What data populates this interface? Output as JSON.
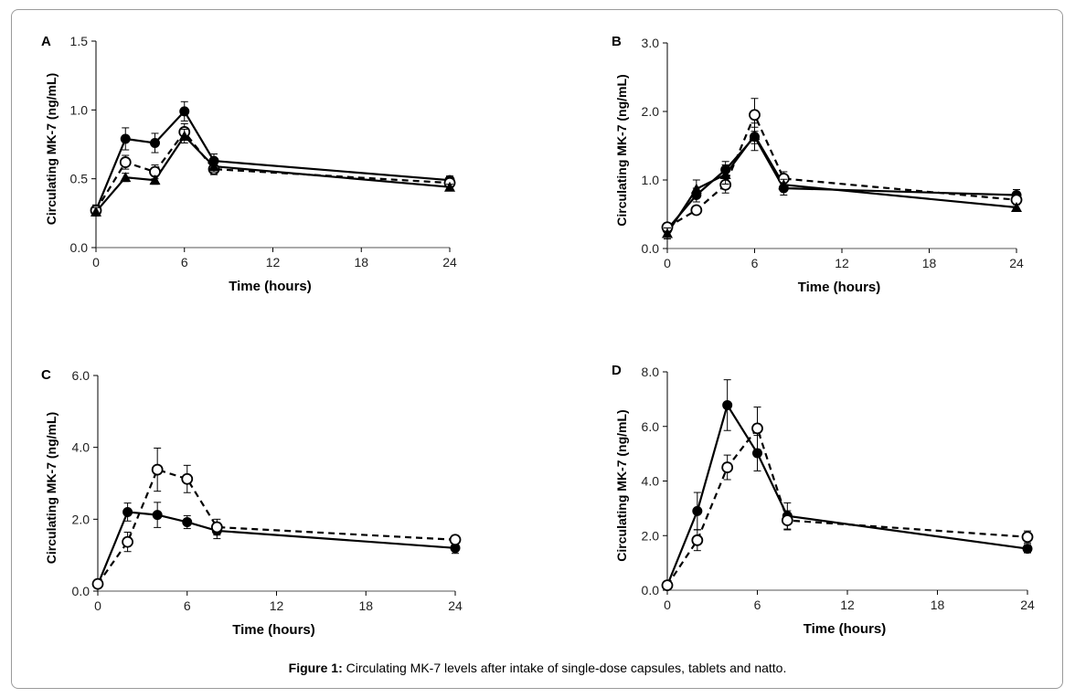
{
  "caption": {
    "label": "Figure 1:",
    "text": " Circulating MK-7 levels after intake of single-dose capsules, tablets and natto."
  },
  "chart_data": [
    {
      "type": "line",
      "panel": "A",
      "xlabel": "Time (hours)",
      "ylabel": "Circulating MK-7 (ng/mL)",
      "x": [
        0,
        2,
        4,
        6,
        8,
        24
      ],
      "xticks": [
        "0",
        "6",
        "12",
        "18",
        "24"
      ],
      "xtick_values": [
        0,
        6,
        12,
        18,
        24
      ],
      "xlim": [
        0,
        24
      ],
      "yticks": [
        "0.0",
        "0.5",
        "1.0",
        "1.5"
      ],
      "ytick_values": [
        0,
        0.5,
        1.0,
        1.5
      ],
      "ylim": [
        0,
        1.5
      ],
      "grid": false,
      "series": [
        {
          "name": "filled-circle",
          "marker": "filled-circle",
          "line": "solid",
          "values": [
            0.27,
            0.79,
            0.76,
            0.99,
            0.63,
            0.49
          ],
          "errors": [
            0.04,
            0.08,
            0.07,
            0.07,
            0.05,
            0.03
          ]
        },
        {
          "name": "open-circle",
          "marker": "open-circle",
          "line": "dashed",
          "values": [
            0.27,
            0.62,
            0.55,
            0.84,
            0.57,
            0.47
          ],
          "errors": [
            0.03,
            0.05,
            0.05,
            0.06,
            0.04,
            0.03
          ]
        },
        {
          "name": "triangle",
          "marker": "filled-triangle",
          "line": "solid",
          "values": [
            0.26,
            0.51,
            0.49,
            0.81,
            0.59,
            0.44
          ],
          "errors": [
            0.03,
            0.03,
            0.03,
            0.05,
            0.04,
            0.02
          ]
        }
      ]
    },
    {
      "type": "line",
      "panel": "B",
      "xlabel": "Time (hours)",
      "ylabel": "Circulating MK-7 (ng/mL)",
      "x": [
        0,
        2,
        4,
        6,
        8,
        24
      ],
      "xticks": [
        "0",
        "6",
        "12",
        "18",
        "24"
      ],
      "xtick_values": [
        0,
        6,
        12,
        18,
        24
      ],
      "xlim": [
        0,
        24
      ],
      "yticks": [
        "0.0",
        "1.0",
        "2.0",
        "3.0"
      ],
      "ytick_values": [
        0,
        1.0,
        2.0,
        3.0
      ],
      "ylim": [
        0,
        3.0
      ],
      "grid": false,
      "series": [
        {
          "name": "filled-circle",
          "marker": "filled-circle",
          "line": "solid",
          "values": [
            0.28,
            0.78,
            1.15,
            1.63,
            0.88,
            0.78
          ],
          "errors": [
            0.05,
            0.1,
            0.12,
            0.2,
            0.1,
            0.08
          ]
        },
        {
          "name": "open-circle",
          "marker": "open-circle",
          "line": "dashed",
          "values": [
            0.31,
            0.56,
            0.93,
            1.95,
            1.02,
            0.71
          ],
          "errors": [
            0.05,
            0.06,
            0.12,
            0.24,
            0.1,
            0.07
          ]
        },
        {
          "name": "triangle",
          "marker": "filled-triangle",
          "line": "solid",
          "values": [
            0.22,
            0.87,
            1.08,
            1.65,
            0.93,
            0.6
          ],
          "errors": [
            0.08,
            0.13,
            0.14,
            0.12,
            0.08,
            0.04
          ]
        }
      ]
    },
    {
      "type": "line",
      "panel": "C",
      "xlabel": "Time (hours)",
      "ylabel": "Circulating MK-7 (ng/mL)",
      "x": [
        0,
        2,
        4,
        6,
        8,
        24
      ],
      "xticks": [
        "0",
        "6",
        "12",
        "18",
        "24"
      ],
      "xtick_values": [
        0,
        6,
        12,
        18,
        24
      ],
      "xlim": [
        0,
        24
      ],
      "yticks": [
        "0.0",
        "2.0",
        "4.0",
        "6.0"
      ],
      "ytick_values": [
        0,
        2.0,
        4.0,
        6.0
      ],
      "ylim": [
        0,
        6.0
      ],
      "grid": false,
      "series": [
        {
          "name": "filled-circle",
          "marker": "filled-circle",
          "line": "solid",
          "values": [
            0.18,
            2.2,
            2.12,
            1.92,
            1.68,
            1.2
          ],
          "errors": [
            0.05,
            0.25,
            0.35,
            0.18,
            0.22,
            0.15
          ]
        },
        {
          "name": "open-circle",
          "marker": "open-circle",
          "line": "dashed",
          "values": [
            0.2,
            1.37,
            3.38,
            3.12,
            1.78,
            1.43
          ],
          "errors": [
            0.05,
            0.27,
            0.6,
            0.38,
            0.22,
            0.1
          ]
        }
      ]
    },
    {
      "type": "line",
      "panel": "D",
      "xlabel": "Time (hours)",
      "ylabel": "Circulating MK-7 (ng/mL)",
      "x": [
        0,
        2,
        4,
        6,
        8,
        24
      ],
      "xticks": [
        "0",
        "6",
        "12",
        "18",
        "24"
      ],
      "xtick_values": [
        0,
        6,
        12,
        18,
        24
      ],
      "xlim": [
        0,
        24
      ],
      "yticks": [
        "0.0",
        "2.0",
        "4.0",
        "6.0",
        "8.0"
      ],
      "ytick_values": [
        0,
        2.0,
        4.0,
        6.0,
        8.0
      ],
      "ylim": [
        0,
        8.0
      ],
      "grid": false,
      "series": [
        {
          "name": "filled-circle",
          "marker": "filled-circle",
          "line": "solid",
          "values": [
            0.18,
            2.9,
            6.78,
            5.02,
            2.72,
            1.52
          ],
          "errors": [
            0.05,
            0.68,
            0.93,
            0.65,
            0.48,
            0.15
          ]
        },
        {
          "name": "open-circle",
          "marker": "open-circle",
          "line": "dashed",
          "values": [
            0.18,
            1.83,
            4.5,
            5.93,
            2.56,
            1.95
          ],
          "errors": [
            0.05,
            0.38,
            0.45,
            0.78,
            0.35,
            0.22
          ]
        }
      ]
    }
  ]
}
